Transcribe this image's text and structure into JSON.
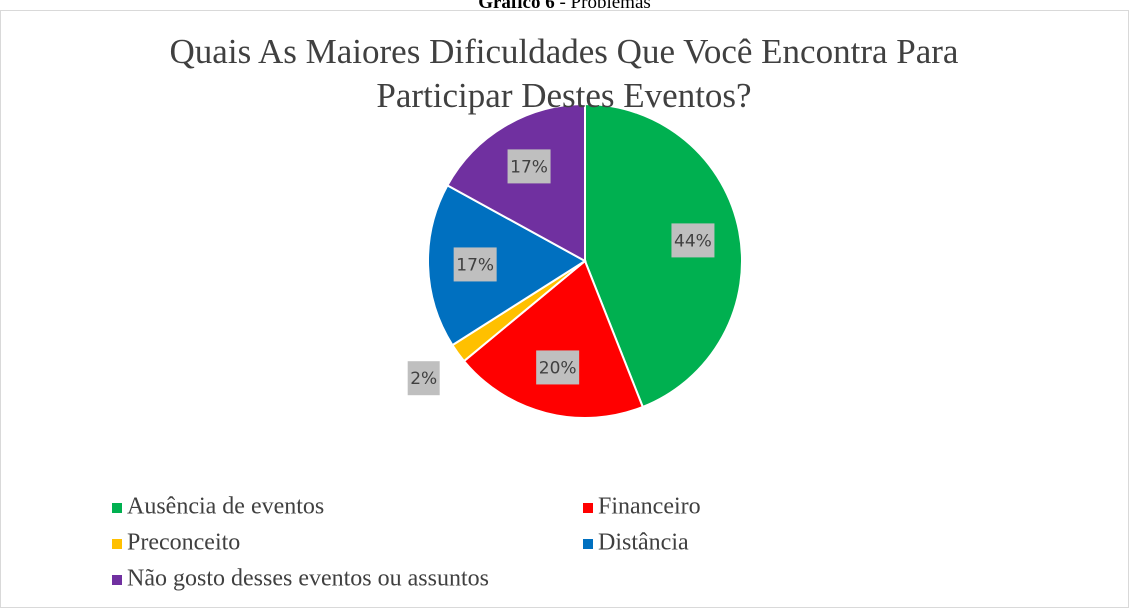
{
  "caption": {
    "label": "Gráfico 6",
    "text": "- Problemas"
  },
  "chart_data": {
    "type": "pie",
    "title": "Quais As Maiores Dificuldades Que Você Encontra Para Participar Destes Eventos?",
    "categories": [
      "Ausência de eventos",
      "Financeiro",
      "Preconceito",
      "Distância",
      "Não gosto desses eventos ou assuntos"
    ],
    "values": [
      44,
      20,
      2,
      17,
      17
    ],
    "value_labels": [
      "44%",
      "20%",
      "2%",
      "17%",
      "17%"
    ],
    "colors": [
      "#00b050",
      "#ff0000",
      "#ffc000",
      "#0070c0",
      "#7030a0"
    ],
    "legend": "bottom"
  }
}
